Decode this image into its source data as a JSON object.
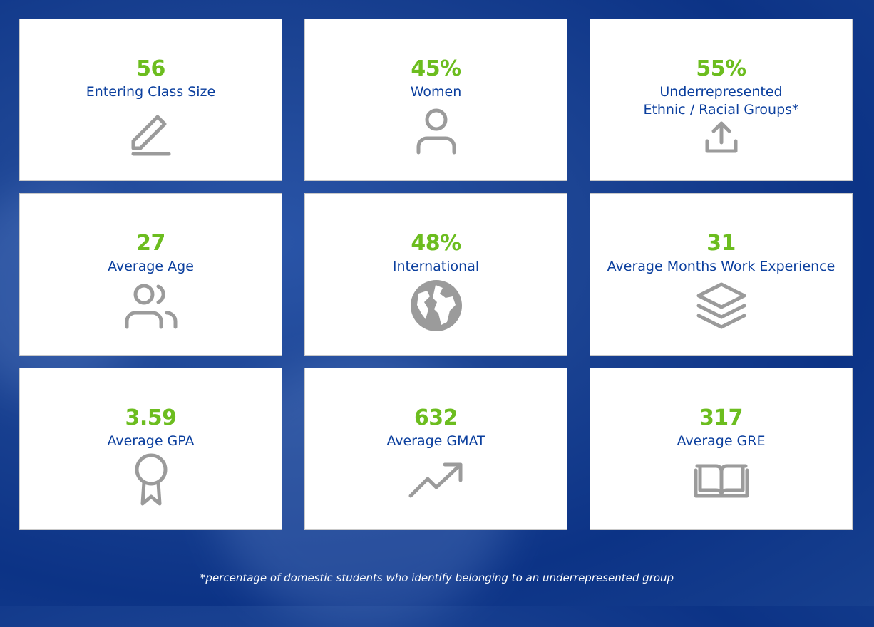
{
  "stats": [
    {
      "value": "56",
      "label": "Entering Class Size",
      "icon": "pencil-icon"
    },
    {
      "value": "45%",
      "label": "Women",
      "icon": "user-icon"
    },
    {
      "value": "55%",
      "label": "Underrepresented\nEthnic / Racial Groups*",
      "icon": "upload-icon"
    },
    {
      "value": "27",
      "label": "Average Age",
      "icon": "users-icon"
    },
    {
      "value": "48%",
      "label": "International",
      "icon": "globe-icon"
    },
    {
      "value": "31",
      "label": "Average Months Work Experience",
      "icon": "layers-icon"
    },
    {
      "value": "3.59",
      "label": "Average GPA",
      "icon": "award-icon"
    },
    {
      "value": "632",
      "label": "Average GMAT",
      "icon": "trending-up-icon"
    },
    {
      "value": "317",
      "label": "Average GRE",
      "icon": "book-icon"
    }
  ],
  "footnote": "*percentage of domestic students who identify belonging to an underrepresented group",
  "colors": {
    "value": "#6cbd1f",
    "label": "#0b3f9e",
    "icon": "#9b9b9b"
  }
}
